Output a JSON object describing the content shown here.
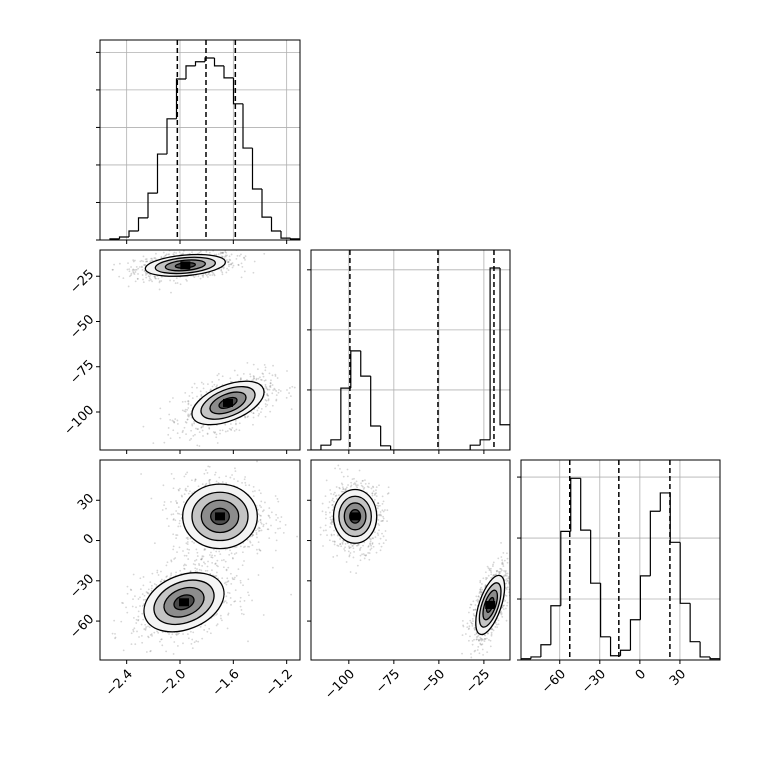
{
  "chart_data": {
    "type": "corner",
    "color": "#000000",
    "show_hist_ytick_labels": false,
    "grid": true,
    "params": [
      {
        "xlim": [
          -2.6,
          -1.1
        ],
        "xticks": [
          {
            "value": -2.4,
            "label": "−2.4"
          },
          {
            "value": -2.0,
            "label": "−2.0"
          },
          {
            "value": -1.6,
            "label": "−1.6"
          },
          {
            "value": -1.2,
            "label": "−1.2"
          }
        ],
        "hist": {
          "bins": [
            -2.525,
            -2.45375,
            -2.3825,
            -2.31125,
            -2.24,
            -2.16875,
            -2.0975,
            -2.02625,
            -1.955,
            -1.88375,
            -1.8125,
            -1.74125,
            -1.67,
            -1.59875,
            -1.5275,
            -1.45625,
            -1.385,
            -1.31375,
            -1.2425,
            -1.17125,
            -1.1
          ],
          "values": [
            0.03,
            0.08,
            0.24,
            0.59,
            1.25,
            2.29,
            3.23,
            4.29,
            4.64,
            4.75,
            4.85,
            4.64,
            4.32,
            3.63,
            2.45,
            1.36,
            0.61,
            0.24,
            0.05,
            0.03
          ],
          "ylim": [
            0,
            5.33
          ],
          "yticks": [
            0,
            1,
            2,
            3,
            4,
            5
          ],
          "quantiles": [
            -2.02,
            -1.805,
            -1.585
          ]
        }
      },
      {
        "xlim": [
          -121,
          -10.5
        ],
        "xticks": [
          {
            "value": -100,
            "label": "−100"
          },
          {
            "value": -75,
            "label": "−75"
          },
          {
            "value": -50,
            "label": "−50"
          },
          {
            "value": -25,
            "label": "−25"
          }
        ],
        "hist": {
          "bins": [
            -121,
            -115.475,
            -109.95,
            -104.425,
            -98.9,
            -93.375,
            -87.85,
            -82.325,
            -76.8,
            -71.275,
            -65.75,
            -60.225,
            -54.7,
            -49.175,
            -43.65,
            -38.125,
            -32.6,
            -27.075,
            -21.55,
            -16.025,
            -10.5
          ],
          "values": [
            0,
            0.08,
            0.17,
            1.03,
            1.65,
            1.23,
            0.4,
            0.07,
            0,
            0,
            0,
            0,
            0,
            0,
            0,
            0,
            0.08,
            0.17,
            3.03,
            0.42
          ],
          "ylim": [
            0,
            3.33
          ],
          "yticks": [
            0,
            1,
            2,
            3
          ],
          "quantiles": [
            -99.4,
            -50.5,
            -19.4
          ]
        }
      },
      {
        "xlim": [
          -89,
          60
        ],
        "xticks": [
          {
            "value": -60,
            "label": "−60"
          },
          {
            "value": -30,
            "label": "−30"
          },
          0,
          30
        ],
        "hist": {
          "bins": [
            -89,
            -81.55,
            -74.1,
            -66.65,
            -59.2,
            -51.75,
            -44.3,
            -36.85,
            -29.4,
            -21.95,
            -14.5,
            -7.05,
            0.4,
            7.85,
            15.3,
            22.75,
            30.2,
            37.65,
            45.1,
            52.55,
            60
          ],
          "values": [
            0.02,
            0.05,
            0.25,
            0.89,
            2.11,
            2.98,
            2.13,
            1.26,
            0.38,
            0.07,
            0.16,
            0.66,
            1.38,
            2.44,
            2.74,
            1.93,
            0.93,
            0.3,
            0.05,
            0.02
          ],
          "ylim": [
            0,
            3.28
          ],
          "yticks": [
            0,
            1,
            2,
            3
          ],
          "quantiles": [
            -52.5,
            -15.75,
            22.5
          ]
        }
      }
    ],
    "pairs": [
      {
        "x": 0,
        "y": 1,
        "blobs": [
          {
            "x": -1.96,
            "y": -19,
            "sx": 0.15,
            "sy": 3,
            "rho": 0.3
          },
          {
            "x": -1.64,
            "y": -95,
            "sx": 0.135,
            "sy": 6,
            "rho": 0.5
          }
        ]
      },
      {
        "x": 0,
        "y": 2,
        "blobs": [
          {
            "x": -1.7,
            "y": 18,
            "sx": 0.14,
            "sy": 12,
            "rho": 0
          },
          {
            "x": -1.97,
            "y": -46,
            "sx": 0.15,
            "sy": 11,
            "rho": 0.3
          }
        ]
      },
      {
        "x": 1,
        "y": 2,
        "blobs": [
          {
            "x": -96.5,
            "y": 18,
            "sx": 6,
            "sy": 10,
            "rho": 0
          },
          {
            "x": -21.5,
            "y": -48,
            "sx": 4,
            "sy": 11,
            "rho": 0.6
          }
        ]
      }
    ]
  }
}
